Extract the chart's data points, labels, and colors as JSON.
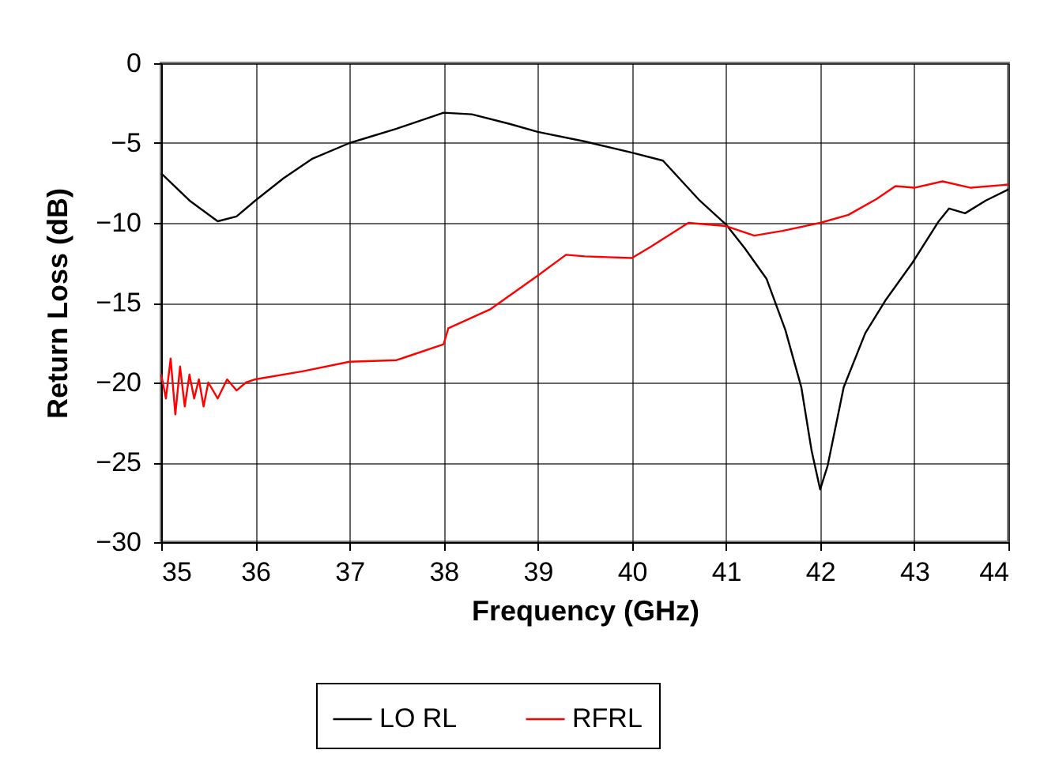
{
  "chart_data": {
    "type": "line",
    "xlabel": "Frequency (GHz)",
    "ylabel": "Return Loss (dB)",
    "xlim": [
      35,
      44
    ],
    "xticks": [
      35,
      36,
      37,
      38,
      39,
      40,
      41,
      42,
      43,
      44
    ],
    "ylim": [
      -30,
      0
    ],
    "yticks": [
      -30,
      -25,
      -20,
      -15,
      -10,
      -5,
      0
    ],
    "grid": true,
    "legend": "bottom",
    "marker": "none",
    "line_style": "solid",
    "series": [
      {
        "name": "LO RL",
        "color": "#000000",
        "x": [
          35,
          35.3,
          35.6,
          35.8,
          36,
          36.3,
          36.6,
          37,
          37.5,
          38,
          38.3,
          38.7,
          39,
          39.5,
          40,
          40.33,
          40.72,
          41,
          41.2,
          41.43,
          41.63,
          41.8,
          41.91,
          42,
          42.08,
          42.25,
          42.48,
          42.7,
          42.98,
          43.26,
          43.37,
          43.54,
          43.76,
          44
        ],
        "values": [
          -6.9,
          -8.6,
          -9.9,
          -9.6,
          -8.6,
          -7.2,
          -6.0,
          -5.0,
          -4.1,
          -3.1,
          -3.2,
          -3.8,
          -4.3,
          -4.9,
          -5.6,
          -6.1,
          -8.6,
          -10.1,
          -11.6,
          -13.5,
          -16.7,
          -20.3,
          -24.3,
          -26.7,
          -25.2,
          -20.3,
          -16.9,
          -14.8,
          -12.5,
          -9.9,
          -9.1,
          -9.4,
          -8.6,
          -7.9
        ]
      },
      {
        "name": "RFRL",
        "color": "#ff0000",
        "x": [
          35,
          35.05,
          35.1,
          35.15,
          35.2,
          35.25,
          35.3,
          35.35,
          35.4,
          35.45,
          35.5,
          35.6,
          35.7,
          35.8,
          35.9,
          36,
          36.5,
          37,
          37.5,
          38,
          38.05,
          38.5,
          39,
          39.3,
          39.5,
          40,
          40.2,
          40.6,
          41,
          41.3,
          41.6,
          42,
          42.3,
          42.6,
          42.8,
          43,
          43.3,
          43.6,
          44
        ],
        "values": [
          -19.5,
          -21,
          -18.5,
          -22,
          -19,
          -21.5,
          -19.5,
          -21,
          -19.8,
          -21.5,
          -20,
          -21,
          -19.8,
          -20.5,
          -20,
          -19.8,
          -19.3,
          -18.7,
          -18.6,
          -17.6,
          -16.6,
          -15.4,
          -13.3,
          -12.0,
          -12.1,
          -12.2,
          -11.5,
          -10.0,
          -10.2,
          -10.8,
          -10.5,
          -10.0,
          -9.5,
          -8.5,
          -7.7,
          -7.8,
          -7.4,
          -7.8,
          -7.6
        ]
      }
    ]
  }
}
